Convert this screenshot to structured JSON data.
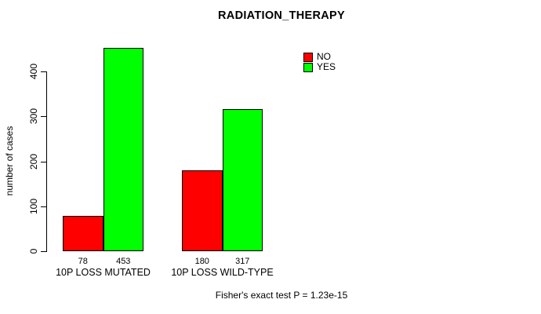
{
  "chart_data": {
    "type": "bar",
    "title": "RADIATION_THERAPY",
    "ylabel": "number of cases",
    "xlabel": "",
    "categories": [
      "10P LOSS MUTATED",
      "10P LOSS WILD-TYPE"
    ],
    "series": [
      {
        "name": "NO",
        "color": "#FF0000",
        "values": [
          78,
          180
        ]
      },
      {
        "name": "YES",
        "color": "#00FF00",
        "values": [
          453,
          317
        ]
      }
    ],
    "yticks": [
      0,
      100,
      200,
      300,
      400
    ],
    "ylim": [
      0,
      465
    ],
    "grid": false,
    "legend_position": "top-right",
    "annotation": "Fisher's exact test P = 1.23e-15",
    "bar_value_labels": [
      78,
      453,
      180,
      317
    ],
    "background": "#FFFFFF",
    "text_color": "#000000"
  }
}
